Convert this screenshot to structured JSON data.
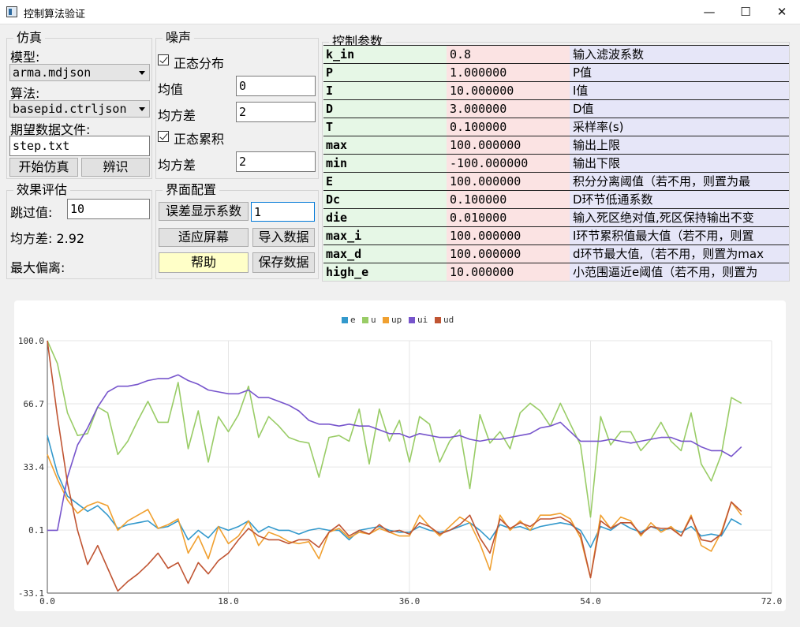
{
  "window": {
    "title": "控制算法验证",
    "min_glyph": "—",
    "max_glyph": "☐",
    "close_glyph": "✕"
  },
  "sim": {
    "legend": "仿真",
    "model_label": "模型:",
    "model_value": "arma.mdjson",
    "algo_label": "算法:",
    "algo_value": "basepid.ctrljson",
    "expect_label": "期望数据文件:",
    "expect_value": "step.txt",
    "start_button": "开始仿真",
    "identify_button": "辨识"
  },
  "noise": {
    "legend": "噪声",
    "normal_label": "正态分布",
    "mean_label": "均值",
    "mean_value": "0",
    "var1_label": "均方差",
    "var1_value": "2",
    "cumulative_label": "正态累积",
    "var2_label": "均方差",
    "var2_value": "2"
  },
  "eval": {
    "legend": "效果评估",
    "skip_label": "跳过值:",
    "skip_value": "10",
    "mse_text": "均方差: 2.92",
    "maxdev_text": "最大偏离:"
  },
  "ui_config": {
    "legend": "界面配置",
    "err_coef_button": "误差显示系数",
    "err_coef_value": "1",
    "fit_button": "适应屏幕",
    "import_button": "导入数据",
    "help_button": "帮助",
    "save_button": "保存数据"
  },
  "params": {
    "legend": "控制参数",
    "rows": [
      {
        "name": "k_in",
        "value": "0.8",
        "desc": "输入滤波系数"
      },
      {
        "name": "P",
        "value": "1.000000",
        "desc": "P值"
      },
      {
        "name": "I",
        "value": "10.000000",
        "desc": "I值"
      },
      {
        "name": "D",
        "value": "3.000000",
        "desc": "D值"
      },
      {
        "name": "T",
        "value": "0.100000",
        "desc": "采样率(s)"
      },
      {
        "name": "max",
        "value": "100.000000",
        "desc": "输出上限"
      },
      {
        "name": "min",
        "value": "-100.000000",
        "desc": "输出下限"
      },
      {
        "name": "E",
        "value": "100.000000",
        "desc": "积分分离阈值（若不用，则置为最"
      },
      {
        "name": "Dc",
        "value": "0.100000",
        "desc": "D环节低通系数"
      },
      {
        "name": "die",
        "value": "0.010000",
        "desc": "输入死区绝对值,死区保持输出不变"
      },
      {
        "name": "max_i",
        "value": "100.000000",
        "desc": "I环节累积值最大值（若不用，则置"
      },
      {
        "name": "max_d",
        "value": "100.000000",
        "desc": "d环节最大值,（若不用，则置为max"
      },
      {
        "name": "high_e",
        "value": "10.000000",
        "desc": "小范围逼近e阈值（若不用，则置为"
      }
    ]
  },
  "chart_data": {
    "type": "line",
    "xlim": [
      0,
      72
    ],
    "ylim": [
      -33.1,
      100
    ],
    "xticks": [
      "0.0",
      "18.0",
      "36.0",
      "54.0",
      "72.0"
    ],
    "yticks": [
      "100.0",
      "66.7",
      "33.4",
      "0.1",
      "-33.1"
    ],
    "xtick_values": [
      0,
      18,
      36,
      54,
      72
    ],
    "ytick_values": [
      100,
      66.7,
      33.4,
      0.1,
      -33.1
    ],
    "grid": true,
    "legend_position": "top-center",
    "x": [
      0,
      1,
      2,
      3,
      4,
      5,
      6,
      7,
      8,
      9,
      10,
      11,
      12,
      13,
      14,
      15,
      16,
      17,
      18,
      19,
      20,
      21,
      22,
      23,
      24,
      25,
      26,
      27,
      28,
      29,
      30,
      31,
      32,
      33,
      34,
      35,
      36,
      37,
      38,
      39,
      40,
      41,
      42,
      43,
      44,
      45,
      46,
      47,
      48,
      49,
      50,
      51,
      52,
      53,
      54,
      55,
      56,
      57,
      58,
      59,
      60,
      61,
      62,
      63,
      64,
      65,
      66,
      67,
      68,
      69
    ],
    "series": [
      {
        "name": "e",
        "color": "#3399cc",
        "values": [
          50,
          30,
          18,
          14,
          10,
          13,
          8,
          1,
          3,
          4,
          5,
          1,
          2,
          5,
          -5,
          0,
          -4,
          2,
          0,
          2,
          5,
          -1,
          2,
          0,
          0,
          -2,
          0,
          1,
          0,
          0,
          -5,
          0,
          1,
          2,
          0,
          -1,
          -1,
          2,
          0,
          -1,
          0,
          2,
          4,
          0,
          -5,
          3,
          1,
          2,
          0,
          2,
          3,
          4,
          3,
          0,
          -9,
          2,
          0,
          4,
          1,
          -1,
          2,
          0,
          1,
          -1,
          2,
          -3,
          -2,
          -3,
          6,
          3
        ]
      },
      {
        "name": "u",
        "color": "#99cc66",
        "values": [
          100,
          88,
          62,
          50,
          51,
          65,
          62,
          40,
          47,
          58,
          68,
          57,
          57,
          78,
          43,
          63,
          36,
          60,
          52,
          61,
          76,
          49,
          60,
          55,
          49,
          47,
          46,
          28,
          49,
          50,
          47,
          64,
          35,
          64,
          47,
          58,
          36,
          60,
          56,
          36,
          47,
          53,
          22,
          61,
          46,
          52,
          43,
          62,
          67,
          63,
          55,
          67,
          56,
          45,
          7,
          60,
          45,
          52,
          52,
          42,
          48,
          57,
          47,
          42,
          62,
          35,
          26,
          40,
          70,
          67
        ]
      },
      {
        "name": "up",
        "color": "#f0a030",
        "values": [
          40,
          27,
          16,
          9,
          13,
          15,
          13,
          0,
          5,
          8,
          11,
          1,
          3,
          6,
          -12,
          -3,
          -15,
          2,
          -7,
          -3,
          5,
          -8,
          -1,
          -3,
          -6,
          -7,
          -6,
          -15,
          -1,
          1,
          -4,
          -1,
          -2,
          1,
          -1,
          -3,
          -3,
          8,
          2,
          -3,
          2,
          7,
          4,
          -7,
          -21,
          8,
          0,
          5,
          0,
          8,
          8,
          9,
          6,
          -4,
          -25,
          8,
          1,
          7,
          5,
          -3,
          4,
          -1,
          2,
          -3,
          8,
          -8,
          -11,
          -1,
          15,
          8
        ]
      },
      {
        "name": "ui",
        "color": "#7755cc",
        "values": [
          0,
          0,
          28,
          45,
          54,
          65,
          73,
          76,
          76,
          77,
          79,
          80,
          80,
          82,
          79,
          77,
          74,
          73,
          72,
          72,
          74,
          70,
          70,
          68,
          66,
          63,
          58,
          56,
          56,
          55,
          56,
          55,
          55,
          53,
          51,
          51,
          49,
          51,
          50,
          49,
          49,
          50,
          48,
          47,
          48,
          48,
          49,
          50,
          51,
          54,
          55,
          57,
          52,
          47,
          47,
          47,
          48,
          47,
          46,
          47,
          48,
          49,
          49,
          47,
          47,
          44,
          42,
          42,
          39,
          44
        ]
      },
      {
        "name": "ud",
        "color": "#c05533",
        "values": [
          100,
          60,
          25,
          0,
          -18,
          -8,
          -20,
          -32,
          -27,
          -23,
          -18,
          -12,
          -20,
          -17,
          -28,
          -17,
          -23,
          -16,
          -12,
          -5,
          1,
          -3,
          -5,
          -5,
          -7,
          -5,
          -5,
          -9,
          -1,
          3,
          -3,
          0,
          -2,
          3,
          -1,
          0,
          -2,
          4,
          2,
          -2,
          0,
          3,
          8,
          -4,
          -12,
          6,
          1,
          4,
          2,
          6,
          6,
          7,
          4,
          -2,
          -25,
          5,
          1,
          4,
          4,
          -2,
          2,
          1,
          1,
          -3,
          7,
          -5,
          -6,
          -2,
          15,
          10
        ]
      }
    ]
  }
}
